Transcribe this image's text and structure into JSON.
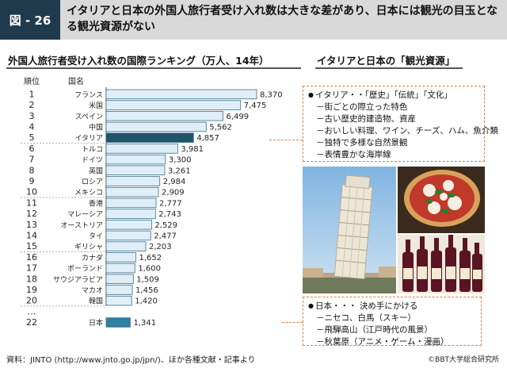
{
  "header": {
    "figure_label": "図 - 26",
    "title": "イタリアと日本の外国人旅行者受け入れ数は大きな差があり、日本には観光の目玉となる観光資源がない"
  },
  "left_section_title": "外国人旅行者受け入れ数の国際ランキング（万人、14年）",
  "right_section_title": "イタリアと日本の「観光資源」",
  "chart_data": {
    "type": "bar",
    "orientation": "horizontal",
    "title": "外国人旅行者受け入れ数の国際ランキング（万人、14年）",
    "rank_header": "順位",
    "country_header": "国名",
    "ranks": [
      "1",
      "2",
      "3",
      "4",
      "5",
      "6",
      "7",
      "8",
      "9",
      "10",
      "11",
      "12",
      "13",
      "14",
      "15",
      "16",
      "17",
      "18",
      "19",
      "20",
      "…",
      "22"
    ],
    "categories": [
      "フランス",
      "米国",
      "スペイン",
      "中国",
      "イタリア",
      "トルコ",
      "ドイツ",
      "英国",
      "ロシア",
      "メキシコ",
      "香港",
      "マレーシア",
      "オーストリア",
      "タイ",
      "ギリシャ",
      "カナダ",
      "ポーランド",
      "サウジアラビア",
      "マカオ",
      "韓国",
      "",
      "日本"
    ],
    "values": [
      8370,
      7475,
      6499,
      5562,
      4857,
      3981,
      3300,
      3261,
      2984,
      2909,
      2777,
      2743,
      2529,
      2477,
      2203,
      1652,
      1600,
      1509,
      1456,
      1420,
      null,
      1341
    ],
    "value_labels": [
      "8,370",
      "7,475",
      "6,499",
      "5,562",
      "4,857",
      "3,981",
      "3,300",
      "3,261",
      "2,984",
      "2,909",
      "2,777",
      "2,743",
      "2,529",
      "2,477",
      "2,203",
      "1,652",
      "1,600",
      "1,509",
      "1,456",
      "1,420",
      "",
      "1,341"
    ],
    "highlight": [
      "イタリア",
      "日本"
    ],
    "colors": {
      "default_fill": "#dfeef7",
      "default_stroke": "#3d6f8d",
      "italy_fill": "#1f5468",
      "japan_fill": "#2f7fa0"
    },
    "grid": false,
    "legend": "none"
  },
  "italy_box": {
    "head": "イタリア・・「歴史」「伝統」「文化」",
    "items": [
      "－街ごとの際立った特色",
      "－古い歴史的建造物、資産",
      "－おいしい料理、ワイン、チーズ、ハム、魚介類",
      "－独特で多様な自然景観",
      "－表情豊かな海岸線"
    ]
  },
  "japan_box": {
    "head": "日本・・・ 決め手にかける",
    "items": [
      "－ニセコ、白馬（スキー）",
      "－飛騨高山（江戸時代の風景）",
      "－秋葉原（アニメ・ゲーム・漫画）"
    ]
  },
  "footer": {
    "source": "資料：JINTO (http://www.jnto.go.jp/jpn/)、ほか各種文献・記事より",
    "copyright": "©BBT大学総合研究所"
  }
}
